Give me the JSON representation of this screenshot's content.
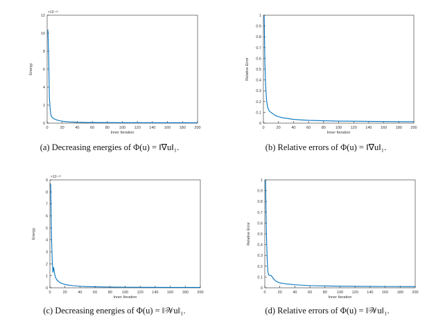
{
  "chart_data": [
    {
      "type": "line",
      "caption": "(a) Decreasing energies of Φ(u) = ‖∇u‖₁.",
      "xlabel": "Inner Iteration",
      "ylabel": "Energy",
      "exponent_label": "×10⁻¹⁰",
      "xlim": [
        0,
        200
      ],
      "ylim": [
        0,
        12
      ],
      "xticks": [
        0,
        20,
        40,
        60,
        80,
        100,
        120,
        140,
        160,
        180,
        200
      ],
      "yticks": [
        0,
        2,
        4,
        6,
        8,
        10,
        12
      ],
      "grid": false,
      "color": "#0072BD",
      "series": [
        {
          "x": [
            1,
            2,
            3,
            4,
            5,
            6,
            8,
            10,
            13,
            16,
            20,
            25,
            30,
            40,
            50,
            60,
            80,
            100,
            120,
            150,
            180,
            200
          ],
          "y": [
            10.4,
            7.6,
            2.8,
            1.6,
            0.9,
            0.7,
            0.55,
            0.45,
            0.35,
            0.28,
            0.22,
            0.17,
            0.14,
            0.1,
            0.08,
            0.07,
            0.06,
            0.05,
            0.05,
            0.04,
            0.04,
            0.04
          ]
        }
      ]
    },
    {
      "type": "line",
      "caption": "(b) Relative errors of Φ(u) = ‖∇u‖₁.",
      "xlabel": "Inner Iteration",
      "ylabel": "Relative Error",
      "exponent_label": "",
      "xlim": [
        0,
        200
      ],
      "ylim": [
        0,
        1
      ],
      "xticks": [
        0,
        20,
        40,
        60,
        80,
        100,
        120,
        140,
        160,
        180,
        200
      ],
      "yticks": [
        0,
        0.1,
        0.2,
        0.3,
        0.4,
        0.5,
        0.6,
        0.7,
        0.8,
        0.9,
        1
      ],
      "grid": false,
      "color": "#0072BD",
      "series": [
        {
          "x": [
            1,
            2,
            3,
            4,
            5,
            6,
            8,
            10,
            13,
            16,
            20,
            25,
            30,
            40,
            50,
            60,
            80,
            100,
            130,
            160,
            200
          ],
          "y": [
            1.0,
            0.55,
            0.35,
            0.23,
            0.17,
            0.14,
            0.11,
            0.1,
            0.085,
            0.07,
            0.06,
            0.05,
            0.045,
            0.035,
            0.03,
            0.026,
            0.022,
            0.019,
            0.017,
            0.015,
            0.013
          ]
        }
      ]
    },
    {
      "type": "line",
      "caption": "(c) Decreasing energies of Φ(u) = ‖𝒲u‖₁.",
      "xlabel": "Inner Iteration",
      "ylabel": "Energy",
      "exponent_label": "×10⁻¹⁰",
      "xlim": [
        0,
        200
      ],
      "ylim": [
        0,
        9
      ],
      "xticks": [
        0,
        20,
        40,
        60,
        80,
        100,
        120,
        140,
        160,
        180,
        200
      ],
      "yticks": [
        0,
        1,
        2,
        3,
        4,
        5,
        6,
        7,
        8,
        9
      ],
      "grid": false,
      "color": "#0072BD",
      "series": [
        {
          "x": [
            1,
            2,
            3,
            4,
            5,
            6,
            7,
            8,
            10,
            13,
            16,
            20,
            25,
            30,
            40,
            50,
            60,
            80,
            100,
            130,
            160,
            200
          ],
          "y": [
            8.7,
            4.5,
            2.4,
            1.3,
            1.7,
            1.25,
            0.95,
            0.8,
            0.6,
            0.45,
            0.36,
            0.28,
            0.22,
            0.18,
            0.13,
            0.1,
            0.08,
            0.06,
            0.05,
            0.04,
            0.035,
            0.03
          ]
        }
      ]
    },
    {
      "type": "line",
      "caption": "(d) Relative errors of Φ(u) = ‖𝒲u‖₁.",
      "xlabel": "Inner Iteration",
      "ylabel": "Relative Error",
      "exponent_label": "",
      "xlim": [
        0,
        200
      ],
      "ylim": [
        0,
        1
      ],
      "xticks": [
        0,
        20,
        40,
        60,
        80,
        100,
        120,
        140,
        160,
        180,
        200
      ],
      "yticks": [
        0,
        0.1,
        0.2,
        0.3,
        0.4,
        0.5,
        0.6,
        0.7,
        0.8,
        0.9,
        1
      ],
      "grid": false,
      "color": "#0072BD",
      "series": [
        {
          "x": [
            1,
            2,
            3,
            4,
            5,
            6,
            8,
            10,
            12,
            15,
            20,
            25,
            30,
            40,
            50,
            60,
            80,
            100,
            130,
            160,
            200
          ],
          "y": [
            1.0,
            0.55,
            0.3,
            0.16,
            0.12,
            0.115,
            0.115,
            0.1,
            0.08,
            0.06,
            0.045,
            0.04,
            0.035,
            0.028,
            0.024,
            0.02,
            0.017,
            0.015,
            0.013,
            0.012,
            0.011
          ]
        }
      ]
    }
  ]
}
